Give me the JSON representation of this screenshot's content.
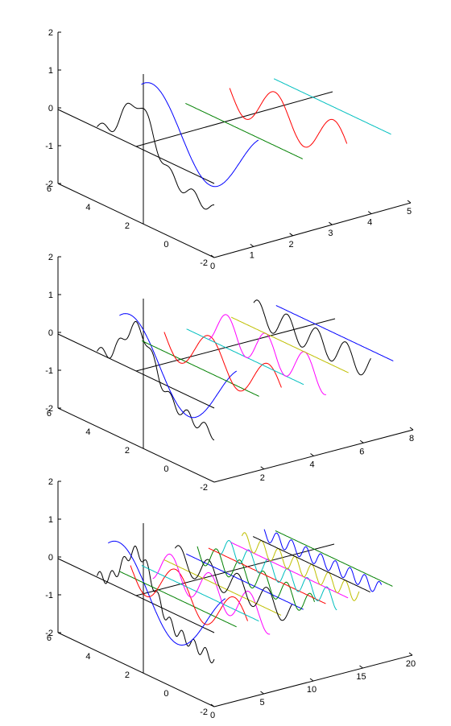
{
  "chart_data": [
    {
      "type": "line",
      "x_ticks": [
        "0",
        "1",
        "2",
        "3",
        "4",
        "5"
      ],
      "y_ticks": [
        "6",
        "4",
        "2",
        "0",
        "-2"
      ],
      "z_ticks": [
        "2",
        "1",
        "0",
        "-1",
        "-2"
      ],
      "series": [
        {
          "color": "#000000",
          "waveform": "approximation",
          "plane_x": 0,
          "cycles": 2.6,
          "amplitude": 0.5
        },
        {
          "color": "#0000ff",
          "waveform": "detail",
          "plane_x": 1,
          "cycles": 1,
          "amplitude": 1.0
        },
        {
          "color": "#008000",
          "waveform": "zero",
          "plane_x": 2,
          "cycles": 0,
          "amplitude": 0
        },
        {
          "color": "#ff0000",
          "waveform": "detail",
          "plane_x": 3,
          "cycles": 2,
          "amplitude": 0.55
        },
        {
          "color": "#00bfbf",
          "waveform": "zero",
          "plane_x": 4,
          "cycles": 0,
          "amplitude": 0
        }
      ]
    },
    {
      "type": "line",
      "x_ticks": [
        "2",
        "4",
        "6",
        "8"
      ],
      "y_ticks": [
        "6",
        "4",
        "2",
        "0",
        "-2"
      ],
      "z_ticks": [
        "2",
        "1",
        "0",
        "-1",
        "-2"
      ],
      "series": [
        {
          "color": "#000000",
          "waveform": "approximation",
          "plane_x": 0,
          "cycles": 3.4,
          "amplitude": 0.5
        },
        {
          "color": "#0000ff",
          "waveform": "detail",
          "plane_x": 1,
          "cycles": 1,
          "amplitude": 1.0
        },
        {
          "color": "#008000",
          "waveform": "zero",
          "plane_x": 2,
          "cycles": 0,
          "amplitude": 0
        },
        {
          "color": "#ff0000",
          "waveform": "detail",
          "plane_x": 3,
          "cycles": 2,
          "amplitude": 0.55
        },
        {
          "color": "#00bfbf",
          "waveform": "zero",
          "plane_x": 4,
          "cycles": 0,
          "amplitude": 0
        },
        {
          "color": "#ff00ff",
          "waveform": "detail",
          "plane_x": 5,
          "cycles": 3,
          "amplitude": 0.45
        },
        {
          "color": "#bfbf00",
          "waveform": "zero",
          "plane_x": 6,
          "cycles": 0,
          "amplitude": 0
        },
        {
          "color": "#000000",
          "waveform": "detail",
          "plane_x": 7,
          "cycles": 4,
          "amplitude": 0.35
        },
        {
          "color": "#0000ff",
          "waveform": "zero",
          "plane_x": 8,
          "cycles": 0,
          "amplitude": 0
        }
      ]
    },
    {
      "type": "line",
      "x_ticks": [
        "0",
        "5",
        "10",
        "15",
        "20"
      ],
      "y_ticks": [
        "6",
        "4",
        "2",
        "0",
        "-2"
      ],
      "z_ticks": [
        "2",
        "1",
        "0",
        "-1",
        "-2"
      ],
      "series": [
        {
          "color": "#000000",
          "waveform": "approximation",
          "plane_x": 0,
          "cycles": 5,
          "amplitude": 0.5
        },
        {
          "color": "#0000ff",
          "waveform": "detail",
          "plane_x": 1,
          "cycles": 1,
          "amplitude": 1.0
        },
        {
          "color": "#008000",
          "waveform": "zero",
          "plane_x": 2,
          "cycles": 0,
          "amplitude": 0
        },
        {
          "color": "#ff0000",
          "waveform": "detail",
          "plane_x": 3,
          "cycles": 2,
          "amplitude": 0.55
        },
        {
          "color": "#00bfbf",
          "waveform": "zero",
          "plane_x": 4,
          "cycles": 0,
          "amplitude": 0
        },
        {
          "color": "#ff00ff",
          "waveform": "detail",
          "plane_x": 5,
          "cycles": 3,
          "amplitude": 0.45
        },
        {
          "color": "#bfbf00",
          "waveform": "zero",
          "plane_x": 6,
          "cycles": 0,
          "amplitude": 0
        },
        {
          "color": "#000000",
          "waveform": "detail",
          "plane_x": 7,
          "cycles": 4,
          "amplitude": 0.35
        },
        {
          "color": "#0000ff",
          "waveform": "zero",
          "plane_x": 8,
          "cycles": 0,
          "amplitude": 0
        },
        {
          "color": "#008000",
          "waveform": "detail",
          "plane_x": 9,
          "cycles": 5,
          "amplitude": 0.3
        },
        {
          "color": "#ff0000",
          "waveform": "zero",
          "plane_x": 10,
          "cycles": 0,
          "amplitude": 0
        },
        {
          "color": "#00bfbf",
          "waveform": "detail",
          "plane_x": 11,
          "cycles": 6,
          "amplitude": 0.25
        },
        {
          "color": "#ff00ff",
          "waveform": "zero",
          "plane_x": 12,
          "cycles": 0,
          "amplitude": 0
        },
        {
          "color": "#bfbf00",
          "waveform": "detail",
          "plane_x": 13,
          "cycles": 7,
          "amplitude": 0.22
        },
        {
          "color": "#000000",
          "waveform": "zero",
          "plane_x": 14,
          "cycles": 0,
          "amplitude": 0
        },
        {
          "color": "#0000ff",
          "waveform": "detail",
          "plane_x": 15,
          "cycles": 8,
          "amplitude": 0.18
        },
        {
          "color": "#008000",
          "waveform": "zero",
          "plane_x": 16,
          "cycles": 0,
          "amplitude": 0
        }
      ]
    }
  ]
}
